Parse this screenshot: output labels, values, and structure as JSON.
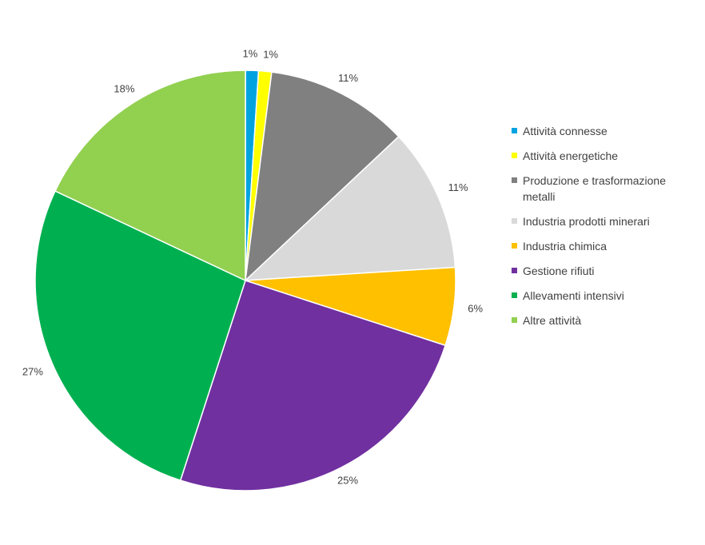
{
  "chart_data": {
    "type": "pie",
    "title": "",
    "slices": [
      {
        "label": "Attività connesse",
        "value": 1,
        "data_label": "1%",
        "color": "#00A3E0"
      },
      {
        "label": "Attività energetiche",
        "value": 1,
        "data_label": "1%",
        "color": "#FFFF00"
      },
      {
        "label": "Produzione e trasformazione metalli",
        "value": 11,
        "data_label": "11%",
        "color": "#808080"
      },
      {
        "label": "Industria prodotti minerari",
        "value": 11,
        "data_label": "11%",
        "color": "#D9D9D9"
      },
      {
        "label": "Industria chimica",
        "value": 6,
        "data_label": "6%",
        "color": "#FFC000"
      },
      {
        "label": "Gestione rifiuti",
        "value": 25,
        "data_label": "25%",
        "color": "#7030A0"
      },
      {
        "label": "Allevamenti intensivi",
        "value": 27,
        "data_label": "27%",
        "color": "#00B050"
      },
      {
        "label": "Altre attività",
        "value": 18,
        "data_label": "18%",
        "color": "#92D050"
      }
    ],
    "legend_position": "right"
  }
}
